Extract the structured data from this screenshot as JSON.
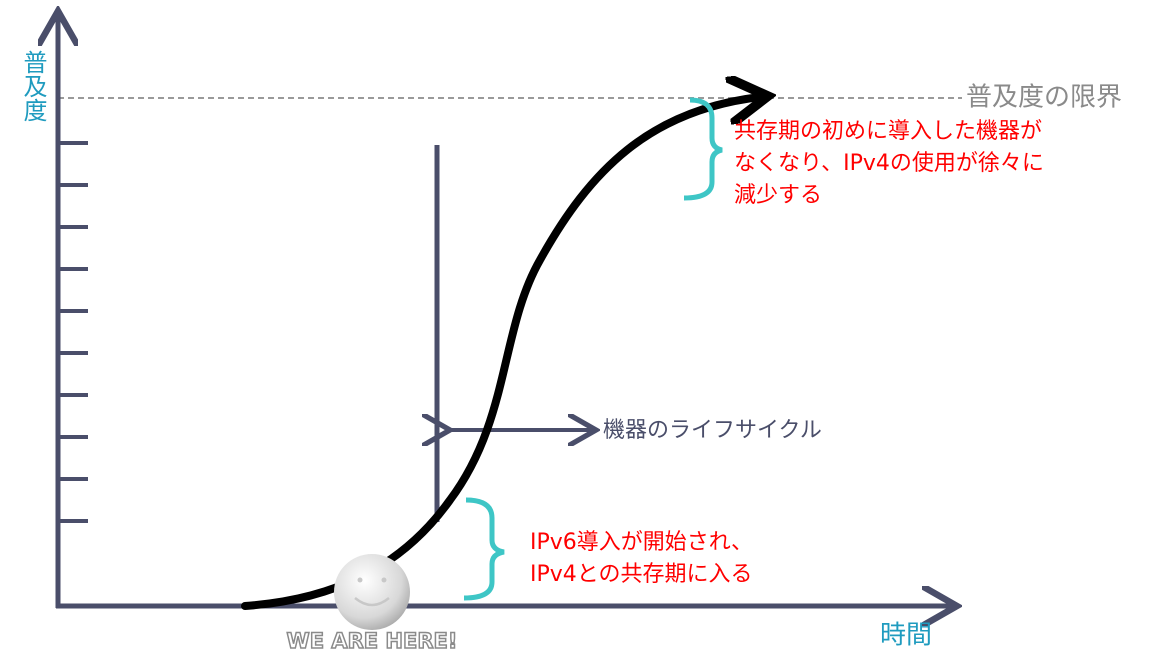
{
  "axes": {
    "y_label": "普及度",
    "x_label": "時間"
  },
  "limit_label": "普及度の限界",
  "annotations": {
    "decline": [
      "共存期の初めに導入した機器が",
      "なくなり、IPv4の使用が徐々に",
      "減少する"
    ],
    "lifecycle": "機器のライフサイクル",
    "start": [
      "IPv6導入が開始され、",
      "IPv4との共存期に入る"
    ]
  },
  "badge": "WE ARE HERE!"
}
